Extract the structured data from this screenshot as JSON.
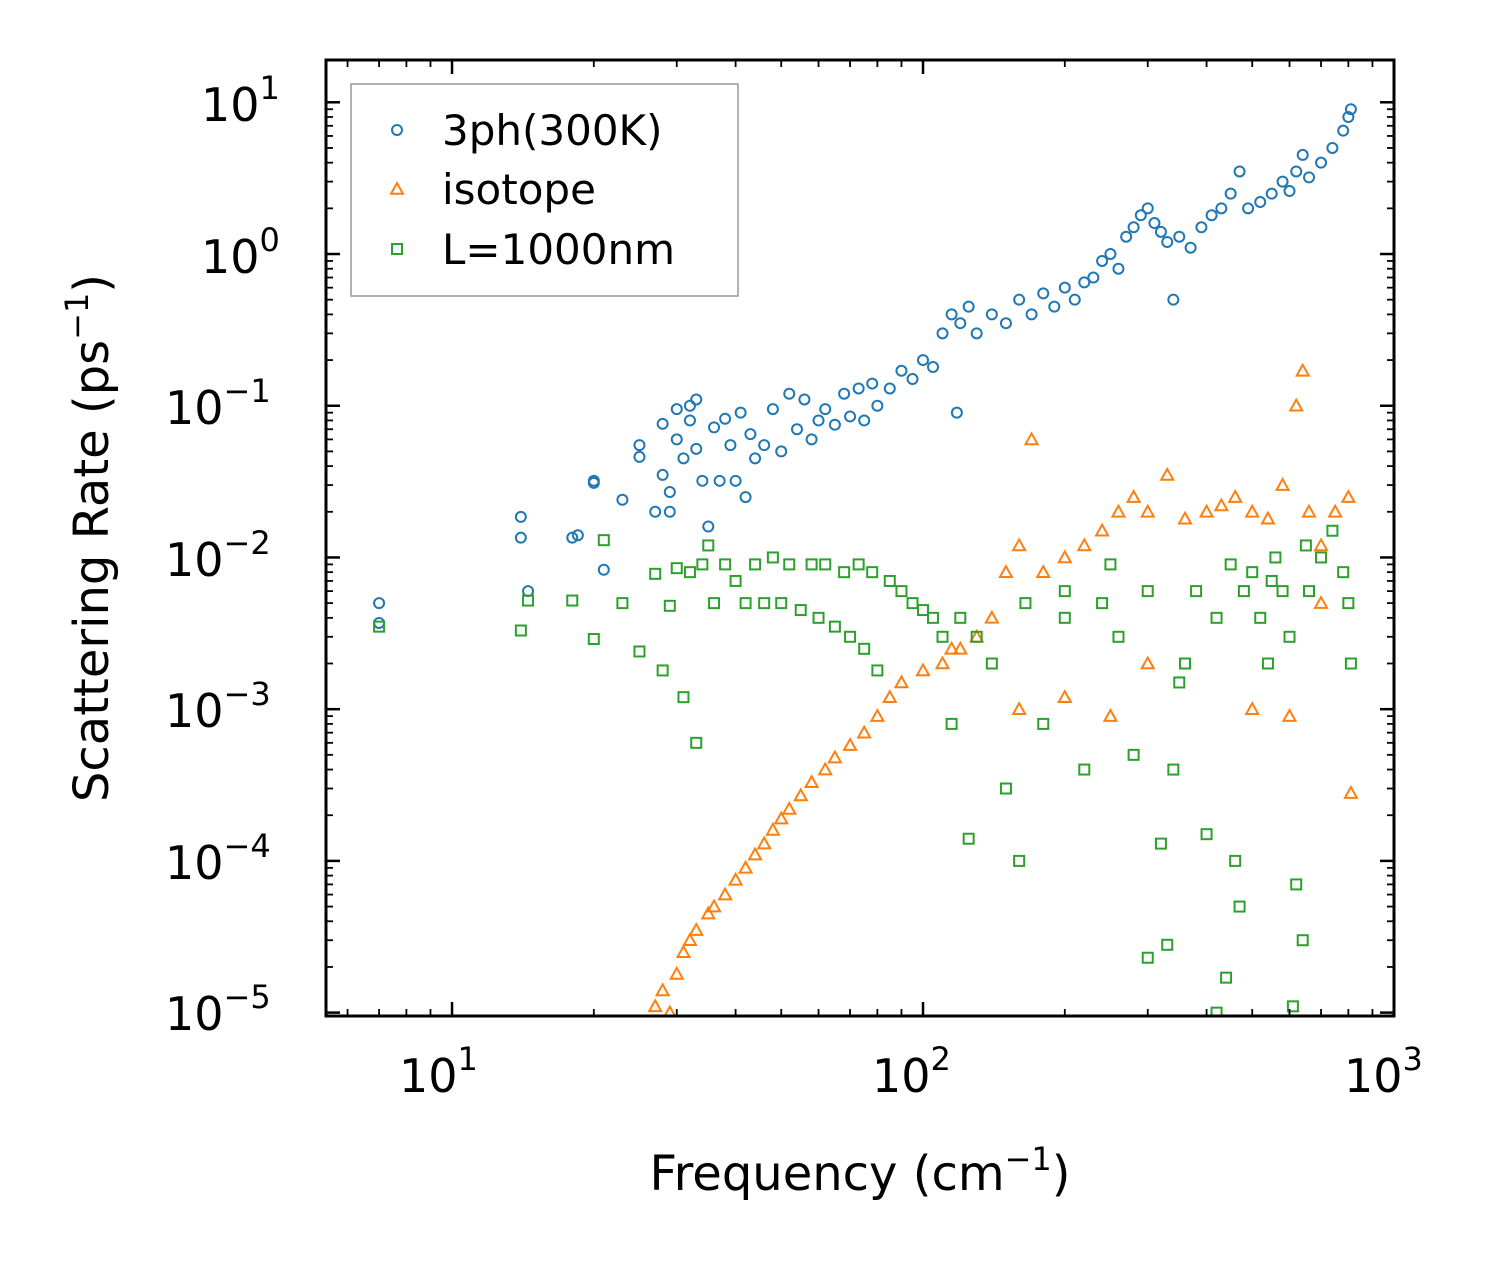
{
  "chart_data": {
    "type": "scatter",
    "x_scale": "log",
    "y_scale": "log",
    "xlim": [
      5.4,
      1000
    ],
    "ylim": [
      9.5e-06,
      19
    ],
    "xlabel": "Frequency (cm",
    "xlabel_sup": "−1",
    "xlabel_end": ")",
    "ylabel": "Scattering Rate (ps",
    "ylabel_sup": "−1",
    "ylabel_end": ")",
    "x_ticks": [
      {
        "base": "10",
        "exp": "1",
        "value": 10
      },
      {
        "base": "10",
        "exp": "2",
        "value": 100
      },
      {
        "base": "10",
        "exp": "3",
        "value": 1000
      }
    ],
    "y_ticks": [
      {
        "base": "10",
        "exp": "1",
        "value": 10
      },
      {
        "base": "10",
        "exp": "0",
        "value": 1
      },
      {
        "base": "10",
        "exp": "−1",
        "value": 0.1
      },
      {
        "base": "10",
        "exp": "−2",
        "value": 0.01
      },
      {
        "base": "10",
        "exp": "−3",
        "value": 0.001
      },
      {
        "base": "10",
        "exp": "−4",
        "value": 0.0001
      },
      {
        "base": "10",
        "exp": "−5",
        "value": 1e-05
      }
    ],
    "legend_position": "top-left",
    "series": [
      {
        "name": "3ph(300K)",
        "marker": "circle",
        "color": "#1f77b4",
        "points": [
          [
            7,
            0.005
          ],
          [
            7,
            0.0037
          ],
          [
            14,
            0.0185
          ],
          [
            14,
            0.0135
          ],
          [
            14.5,
            0.006
          ],
          [
            18,
            0.0135
          ],
          [
            18.5,
            0.014
          ],
          [
            20,
            0.031
          ],
          [
            20,
            0.032
          ],
          [
            21,
            0.0083
          ],
          [
            23,
            0.024
          ],
          [
            25,
            0.055
          ],
          [
            25,
            0.046
          ],
          [
            27,
            0.02
          ],
          [
            28,
            0.035
          ],
          [
            28,
            0.076
          ],
          [
            29,
            0.02
          ],
          [
            29,
            0.027
          ],
          [
            30,
            0.095
          ],
          [
            30,
            0.06
          ],
          [
            31,
            0.045
          ],
          [
            32,
            0.1
          ],
          [
            32,
            0.08
          ],
          [
            33,
            0.11
          ],
          [
            33,
            0.052
          ],
          [
            34,
            0.032
          ],
          [
            35,
            0.016
          ],
          [
            36,
            0.072
          ],
          [
            37,
            0.032
          ],
          [
            38,
            0.082
          ],
          [
            39,
            0.055
          ],
          [
            40,
            0.032
          ],
          [
            41,
            0.09
          ],
          [
            42,
            0.025
          ],
          [
            43,
            0.065
          ],
          [
            44,
            0.045
          ],
          [
            46,
            0.055
          ],
          [
            48,
            0.095
          ],
          [
            50,
            0.05
          ],
          [
            52,
            0.12
          ],
          [
            54,
            0.07
          ],
          [
            56,
            0.11
          ],
          [
            58,
            0.06
          ],
          [
            60,
            0.08
          ],
          [
            62,
            0.095
          ],
          [
            65,
            0.075
          ],
          [
            68,
            0.12
          ],
          [
            70,
            0.085
          ],
          [
            73,
            0.13
          ],
          [
            75,
            0.08
          ],
          [
            78,
            0.14
          ],
          [
            80,
            0.1
          ],
          [
            85,
            0.13
          ],
          [
            90,
            0.17
          ],
          [
            95,
            0.15
          ],
          [
            100,
            0.2
          ],
          [
            105,
            0.18
          ],
          [
            110,
            0.3
          ],
          [
            115,
            0.4
          ],
          [
            118,
            0.09
          ],
          [
            120,
            0.35
          ],
          [
            125,
            0.45
          ],
          [
            130,
            0.3
          ],
          [
            140,
            0.4
          ],
          [
            150,
            0.35
          ],
          [
            160,
            0.5
          ],
          [
            170,
            0.4
          ],
          [
            180,
            0.55
          ],
          [
            190,
            0.45
          ],
          [
            200,
            0.6
          ],
          [
            210,
            0.5
          ],
          [
            220,
            0.65
          ],
          [
            230,
            0.7
          ],
          [
            240,
            0.9
          ],
          [
            250,
            1.0
          ],
          [
            260,
            0.8
          ],
          [
            270,
            1.3
          ],
          [
            280,
            1.5
          ],
          [
            290,
            1.8
          ],
          [
            300,
            2.0
          ],
          [
            310,
            1.6
          ],
          [
            320,
            1.4
          ],
          [
            330,
            1.2
          ],
          [
            340,
            0.5
          ],
          [
            350,
            1.3
          ],
          [
            370,
            1.1
          ],
          [
            390,
            1.5
          ],
          [
            410,
            1.8
          ],
          [
            430,
            2.0
          ],
          [
            450,
            2.5
          ],
          [
            470,
            3.5
          ],
          [
            490,
            2.0
          ],
          [
            520,
            2.2
          ],
          [
            550,
            2.5
          ],
          [
            580,
            3.0
          ],
          [
            600,
            2.6
          ],
          [
            620,
            3.5
          ],
          [
            640,
            4.5
          ],
          [
            660,
            3.2
          ],
          [
            700,
            4.0
          ],
          [
            740,
            5.0
          ],
          [
            780,
            6.5
          ],
          [
            800,
            8.0
          ],
          [
            810,
            9.0
          ]
        ]
      },
      {
        "name": "isotope",
        "marker": "triangle",
        "color": "#ff7f0e",
        "points": [
          [
            27,
            1.1e-05
          ],
          [
            28,
            1.4e-05
          ],
          [
            29,
            1e-05
          ],
          [
            30,
            1.8e-05
          ],
          [
            31,
            2.5e-05
          ],
          [
            32,
            3e-05
          ],
          [
            33,
            3.5e-05
          ],
          [
            35,
            4.5e-05
          ],
          [
            36,
            5e-05
          ],
          [
            38,
            6e-05
          ],
          [
            40,
            7.5e-05
          ],
          [
            42,
            9e-05
          ],
          [
            44,
            0.00011
          ],
          [
            46,
            0.00013
          ],
          [
            48,
            0.00016
          ],
          [
            50,
            0.00019
          ],
          [
            52,
            0.00022
          ],
          [
            55,
            0.00027
          ],
          [
            58,
            0.00033
          ],
          [
            62,
            0.0004
          ],
          [
            65,
            0.00048
          ],
          [
            70,
            0.00058
          ],
          [
            75,
            0.0007
          ],
          [
            80,
            0.0009
          ],
          [
            85,
            0.0012
          ],
          [
            90,
            0.0015
          ],
          [
            100,
            0.0018
          ],
          [
            110,
            0.002
          ],
          [
            120,
            0.0025
          ],
          [
            130,
            0.003
          ],
          [
            140,
            0.004
          ],
          [
            150,
            0.008
          ],
          [
            160,
            0.012
          ],
          [
            170,
            0.06
          ],
          [
            180,
            0.008
          ],
          [
            200,
            0.01
          ],
          [
            220,
            0.012
          ],
          [
            240,
            0.015
          ],
          [
            260,
            0.02
          ],
          [
            280,
            0.025
          ],
          [
            300,
            0.02
          ],
          [
            330,
            0.035
          ],
          [
            360,
            0.018
          ],
          [
            400,
            0.02
          ],
          [
            430,
            0.022
          ],
          [
            460,
            0.025
          ],
          [
            500,
            0.02
          ],
          [
            540,
            0.018
          ],
          [
            580,
            0.03
          ],
          [
            620,
            0.1
          ],
          [
            640,
            0.17
          ],
          [
            660,
            0.02
          ],
          [
            700,
            0.012
          ],
          [
            750,
            0.02
          ],
          [
            800,
            0.025
          ],
          [
            810,
            0.00028
          ],
          [
            115,
            0.0025
          ],
          [
            160,
            0.001
          ],
          [
            200,
            0.0012
          ],
          [
            250,
            0.0009
          ],
          [
            300,
            0.002
          ],
          [
            500,
            0.001
          ],
          [
            600,
            0.0009
          ],
          [
            700,
            0.005
          ]
        ]
      },
      {
        "name": "L=1000nm",
        "marker": "square",
        "color": "#2ca02c",
        "points": [
          [
            7,
            0.0035
          ],
          [
            14,
            0.0033
          ],
          [
            14.5,
            0.0052
          ],
          [
            18,
            0.0052
          ],
          [
            20,
            0.0029
          ],
          [
            21,
            0.013
          ],
          [
            23,
            0.005
          ],
          [
            25,
            0.0024
          ],
          [
            27,
            0.0078
          ],
          [
            28,
            0.0018
          ],
          [
            29,
            0.0048
          ],
          [
            30,
            0.0085
          ],
          [
            31,
            0.0012
          ],
          [
            32,
            0.008
          ],
          [
            33,
            0.0006
          ],
          [
            34,
            0.009
          ],
          [
            35,
            0.012
          ],
          [
            36,
            0.005
          ],
          [
            38,
            0.009
          ],
          [
            40,
            0.007
          ],
          [
            42,
            0.005
          ],
          [
            44,
            0.009
          ],
          [
            46,
            0.005
          ],
          [
            48,
            0.01
          ],
          [
            50,
            0.005
          ],
          [
            52,
            0.009
          ],
          [
            55,
            0.0045
          ],
          [
            58,
            0.009
          ],
          [
            60,
            0.004
          ],
          [
            62,
            0.009
          ],
          [
            65,
            0.0035
          ],
          [
            68,
            0.008
          ],
          [
            70,
            0.003
          ],
          [
            73,
            0.009
          ],
          [
            75,
            0.0025
          ],
          [
            78,
            0.008
          ],
          [
            80,
            0.0018
          ],
          [
            85,
            0.007
          ],
          [
            90,
            0.006
          ],
          [
            95,
            0.005
          ],
          [
            100,
            0.0045
          ],
          [
            105,
            0.004
          ],
          [
            110,
            0.003
          ],
          [
            115,
            0.0008
          ],
          [
            120,
            0.004
          ],
          [
            125,
            0.00014
          ],
          [
            130,
            0.003
          ],
          [
            140,
            0.002
          ],
          [
            150,
            0.0003
          ],
          [
            160,
            0.0001
          ],
          [
            165,
            0.005
          ],
          [
            180,
            0.0008
          ],
          [
            200,
            0.006
          ],
          [
            220,
            0.0004
          ],
          [
            240,
            0.005
          ],
          [
            260,
            0.003
          ],
          [
            280,
            0.0005
          ],
          [
            300,
            0.006
          ],
          [
            320,
            0.00013
          ],
          [
            340,
            0.0004
          ],
          [
            360,
            0.002
          ],
          [
            380,
            0.006
          ],
          [
            400,
            0.00015
          ],
          [
            420,
            0.004
          ],
          [
            440,
            1.7e-05
          ],
          [
            460,
            0.0001
          ],
          [
            470,
            5e-05
          ],
          [
            480,
            0.006
          ],
          [
            500,
            0.008
          ],
          [
            520,
            0.004
          ],
          [
            540,
            0.002
          ],
          [
            560,
            0.01
          ],
          [
            580,
            0.006
          ],
          [
            600,
            0.003
          ],
          [
            610,
            1.1e-05
          ],
          [
            620,
            7e-05
          ],
          [
            640,
            3e-05
          ],
          [
            660,
            0.006
          ],
          [
            700,
            0.01
          ],
          [
            740,
            0.015
          ],
          [
            780,
            0.008
          ],
          [
            800,
            0.005
          ],
          [
            810,
            0.002
          ],
          [
            300,
            2.3e-05
          ],
          [
            330,
            2.8e-05
          ],
          [
            350,
            0.0015
          ],
          [
            420,
            1e-05
          ],
          [
            200,
            0.004
          ],
          [
            250,
            0.009
          ],
          [
            450,
            0.009
          ],
          [
            550,
            0.007
          ],
          [
            650,
            0.012
          ]
        ]
      }
    ]
  }
}
